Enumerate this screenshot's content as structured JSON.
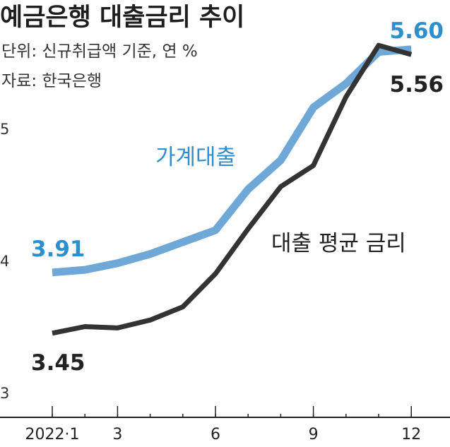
{
  "chart_data": {
    "type": "line",
    "title": "예금은행 대출금리 추이",
    "subtitle": "단위: 신규취급액 기준, 연 %",
    "source": "자료: 한국은행",
    "x": [
      1,
      2,
      3,
      4,
      5,
      6,
      7,
      8,
      9,
      10,
      11,
      12
    ],
    "x_tick_labels": [
      {
        "x": 1,
        "label": "2022·1"
      },
      {
        "x": 3,
        "label": "3"
      },
      {
        "x": 6,
        "label": "6"
      },
      {
        "x": 9,
        "label": "9"
      },
      {
        "x": 12,
        "label": "12"
      }
    ],
    "y_ticks": [
      3,
      4,
      5
    ],
    "ylim": [
      3,
      5.9
    ],
    "xlim": [
      0.3,
      13.2
    ],
    "grid": false,
    "series": [
      {
        "name": "가계대출",
        "color": "#6fa8d6",
        "label_color": "#2e8fcf",
        "values": [
          3.91,
          3.93,
          3.98,
          4.05,
          4.14,
          4.23,
          4.54,
          4.76,
          5.16,
          5.34,
          5.58,
          5.6
        ],
        "first_label": "3.91",
        "last_label": "5.60"
      },
      {
        "name": "대출 평균 금리",
        "color": "#333333",
        "label_color": "#222222",
        "values": [
          3.45,
          3.5,
          3.49,
          3.55,
          3.65,
          3.9,
          4.24,
          4.56,
          4.72,
          5.24,
          5.63,
          5.56
        ],
        "first_label": "3.45",
        "last_label": "5.56"
      }
    ]
  }
}
